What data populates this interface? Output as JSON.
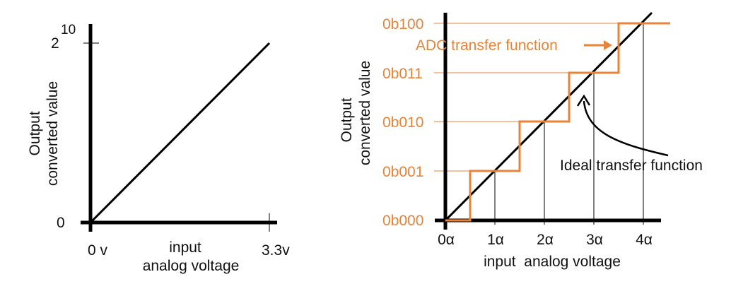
{
  "left_plot": {
    "y_axis_label_line1": "Output",
    "y_axis_label_line2": "converted value",
    "y_max_base": "2",
    "y_max_exp": "10",
    "y_min": "0",
    "x_min": "0 v",
    "x_max": "3.3v",
    "x_label_line1": "input",
    "x_label_line2": "analog voltage"
  },
  "right_plot": {
    "y_axis_label_line1": "Output",
    "y_axis_label_line2": "converted value",
    "y_ticks": [
      "0b000",
      "0b001",
      "0b010",
      "0b011",
      "0b100"
    ],
    "x_ticks": [
      "0α",
      "1α",
      "2α",
      "3α",
      "4α"
    ],
    "x_label": "input  analog voltage",
    "adc_label": "ADC transfer function",
    "ideal_label": "Ideal transfer function",
    "colors": {
      "adc": "#e8833a",
      "ideal": "#000000"
    }
  }
}
